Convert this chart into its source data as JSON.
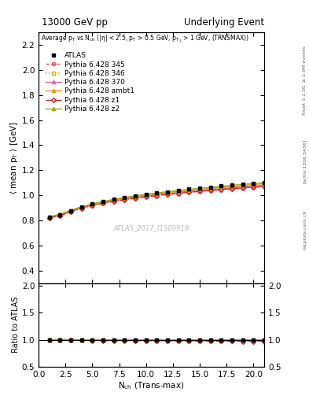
{
  "title_left": "13000 GeV pp",
  "title_right": "Underlying Event",
  "plot_title": "Average $p_T$ vs $N_{ch}$ ($|\\eta|$ < 2.5, $p_T$ > 0.5 GeV, $p_{T_1}$ > 1 GeV, (TRNSMAX))",
  "xlabel": "$N_{ch}$ (Trans-max)",
  "ylabel": "$\\langle$ mean $p_T$ $\\rangle$ [GeV]",
  "ylabel_ratio": "Ratio to ATLAS",
  "watermark": "ATLAS_2017_I1509919",
  "ylim_main": [
    0.3,
    2.3
  ],
  "ylim_ratio": [
    0.5,
    2.05
  ],
  "xlim": [
    0,
    21
  ],
  "yticks_main": [
    0.4,
    0.6,
    0.8,
    1.0,
    1.2,
    1.4,
    1.6,
    1.8,
    2.0,
    2.2
  ],
  "yticks_ratio": [
    0.5,
    1.0,
    1.5,
    2.0
  ],
  "nch_values": [
    1,
    2,
    3,
    4,
    5,
    6,
    7,
    8,
    9,
    10,
    11,
    12,
    13,
    14,
    15,
    16,
    17,
    18,
    19,
    20,
    21
  ],
  "atlas_data": [
    0.827,
    0.844,
    0.878,
    0.906,
    0.93,
    0.95,
    0.967,
    0.982,
    0.995,
    1.007,
    1.018,
    1.029,
    1.039,
    1.048,
    1.057,
    1.065,
    1.073,
    1.081,
    1.088,
    1.095,
    1.102
  ],
  "atlas_errors": [
    0.005,
    0.005,
    0.005,
    0.005,
    0.005,
    0.005,
    0.005,
    0.005,
    0.005,
    0.005,
    0.005,
    0.005,
    0.005,
    0.005,
    0.005,
    0.005,
    0.005,
    0.005,
    0.005,
    0.005,
    0.005
  ],
  "py345_data": [
    0.821,
    0.84,
    0.872,
    0.899,
    0.921,
    0.94,
    0.956,
    0.97,
    0.982,
    0.993,
    1.003,
    1.012,
    1.021,
    1.029,
    1.037,
    1.045,
    1.052,
    1.059,
    1.066,
    1.072,
    1.078
  ],
  "py346_data": [
    0.824,
    0.842,
    0.875,
    0.902,
    0.924,
    0.943,
    0.959,
    0.973,
    0.985,
    0.996,
    1.006,
    1.015,
    1.024,
    1.032,
    1.04,
    1.047,
    1.055,
    1.061,
    1.068,
    1.075,
    1.081
  ],
  "py370_data": [
    0.822,
    0.84,
    0.873,
    0.899,
    0.921,
    0.94,
    0.956,
    0.97,
    0.982,
    0.993,
    1.003,
    1.013,
    1.022,
    1.03,
    1.038,
    1.045,
    1.053,
    1.06,
    1.067,
    1.073,
    1.079
  ],
  "pyambt1_data": [
    0.826,
    0.845,
    0.877,
    0.904,
    0.927,
    0.946,
    0.963,
    0.977,
    0.99,
    1.002,
    1.012,
    1.022,
    1.031,
    1.04,
    1.048,
    1.056,
    1.064,
    1.071,
    1.078,
    1.085,
    1.092
  ],
  "pyz1_data": [
    0.819,
    0.837,
    0.869,
    0.895,
    0.917,
    0.935,
    0.951,
    0.964,
    0.976,
    0.987,
    0.997,
    1.006,
    1.015,
    1.023,
    1.031,
    1.038,
    1.045,
    1.052,
    1.058,
    1.064,
    1.07
  ],
  "pyz2_data": [
    0.83,
    0.849,
    0.882,
    0.909,
    0.932,
    0.951,
    0.968,
    0.983,
    0.996,
    1.008,
    1.019,
    1.029,
    1.039,
    1.048,
    1.056,
    1.064,
    1.072,
    1.08,
    1.087,
    1.094,
    1.101
  ],
  "color_345": "#e05050",
  "color_346": "#c8b400",
  "color_370": "#d060a0",
  "color_ambt1": "#e09000",
  "color_z1": "#cc2020",
  "color_z2": "#a0a000",
  "atlas_color": "#000000",
  "bg_color": "#ffffff",
  "fig_width": 3.93,
  "fig_height": 5.12
}
